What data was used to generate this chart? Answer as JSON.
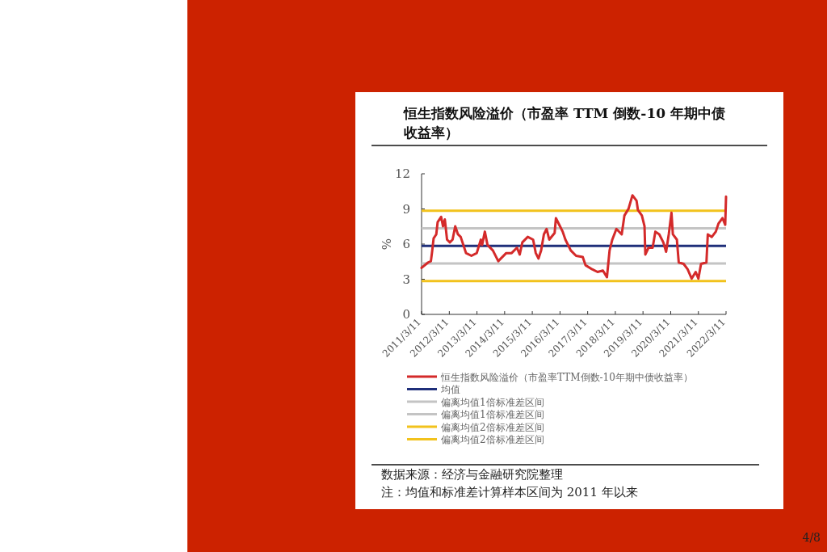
{
  "chart_data": {
    "type": "line",
    "title": "恒生指数风险溢价（市盈率 TTM 倒数-10 年期中债收益率）",
    "ylabel": "%",
    "xlim": [
      "2011-03-11",
      "2022-03-11"
    ],
    "xticks": [
      {
        "value": "2011-03-11",
        "label": "2011/3/11"
      },
      {
        "value": "2012-03-11",
        "label": "2012/3/11"
      },
      {
        "value": "2013-03-11",
        "label": "2013/3/11"
      },
      {
        "value": "2014-03-11",
        "label": "2014/3/11"
      },
      {
        "value": "2015-03-11",
        "label": "2015/3/11"
      },
      {
        "value": "2016-03-11",
        "label": "2016/3/11"
      },
      {
        "value": "2017-03-11",
        "label": "2017/3/11"
      },
      {
        "value": "2018-03-11",
        "label": "2018/3/11"
      },
      {
        "value": "2019-03-11",
        "label": "2019/3/11"
      },
      {
        "value": "2020-03-11",
        "label": "2020/3/11"
      },
      {
        "value": "2021-03-11",
        "label": "2021/3/11"
      },
      {
        "value": "2022-03-11",
        "label": "2022/3/11"
      }
    ],
    "ylim": [
      0,
      12
    ],
    "yticks": [
      0,
      3,
      6,
      9,
      12
    ],
    "grid": false,
    "legend": "bottom",
    "marker": "none",
    "line_style": "solid",
    "series": [
      {
        "name": "恒生指数风险溢价（市盈率TTM倒数-10年期中债收益率）",
        "color": "#d42a2a",
        "x": [
          "2011-03-11",
          "2011-06-05",
          "2011-07-12",
          "2011-07-30",
          "2011-08-17",
          "2011-09-21",
          "2011-10-09",
          "2011-11-24",
          "2011-12-19",
          "2012-01-12",
          "2012-02-10",
          "2012-03-18",
          "2012-04-23",
          "2012-05-28",
          "2012-07-03",
          "2012-08-08",
          "2012-10-18",
          "2012-12-28",
          "2013-03-08",
          "2013-05-01",
          "2013-05-18",
          "2013-06-23",
          "2013-07-28",
          "2013-10-07",
          "2013-12-17",
          "2014-04-01",
          "2014-06-11",
          "2014-08-21",
          "2014-09-26",
          "2014-10-31",
          "2015-01-10",
          "2015-03-22",
          "2015-04-26",
          "2015-06-01",
          "2015-07-06",
          "2015-08-11",
          "2015-09-16",
          "2015-10-21",
          "2015-12-31",
          "2016-01-17",
          "2016-03-11",
          "2016-04-15",
          "2016-05-21",
          "2016-07-31",
          "2016-10-09",
          "2017-01-05",
          "2017-02-10",
          "2017-05-09",
          "2017-07-19",
          "2017-09-28",
          "2017-11-20",
          "2017-12-25",
          "2018-01-30",
          "2018-03-25",
          "2018-06-03",
          "2018-07-09",
          "2018-09-01",
          "2018-10-23",
          "2018-12-16",
          "2019-01-03",
          "2019-02-24",
          "2019-03-31",
          "2019-04-11",
          "2019-05-23",
          "2019-07-16",
          "2019-08-21",
          "2019-10-12",
          "2019-12-04",
          "2020-01-10",
          "2020-02-14",
          "2020-03-21",
          "2020-04-08",
          "2020-05-31",
          "2020-06-25",
          "2020-08-28",
          "2020-10-20",
          "2020-12-12",
          "2021-02-03",
          "2021-03-11",
          "2021-04-15",
          "2021-06-25",
          "2021-07-13",
          "2021-09-04",
          "2021-10-27",
          "2021-12-01",
          "2022-01-23",
          "2022-02-28",
          "2022-03-11"
        ],
        "values": [
          3.97,
          4.43,
          4.54,
          5.46,
          6.49,
          6.83,
          7.87,
          8.33,
          7.52,
          8.1,
          6.38,
          6.15,
          6.38,
          7.52,
          6.83,
          6.61,
          5.23,
          5.0,
          5.23,
          6.38,
          5.92,
          7.06,
          5.92,
          5.46,
          4.54,
          5.23,
          5.23,
          5.69,
          5.11,
          6.15,
          6.61,
          6.38,
          5.23,
          4.77,
          5.46,
          6.83,
          7.29,
          6.38,
          6.95,
          8.21,
          7.52,
          7.06,
          6.38,
          5.46,
          5.0,
          4.89,
          4.2,
          3.85,
          3.62,
          3.74,
          3.17,
          5.46,
          6.38,
          7.29,
          6.83,
          8.44,
          9.01,
          10.16,
          9.7,
          8.9,
          8.44,
          7.52,
          5.11,
          5.69,
          5.69,
          7.06,
          6.83,
          6.15,
          5.34,
          6.83,
          8.67,
          6.83,
          6.38,
          4.43,
          4.31,
          3.85,
          3.05,
          3.62,
          3.05,
          4.31,
          4.43,
          6.83,
          6.61,
          7.06,
          7.75,
          8.21,
          7.64,
          10.05
        ]
      }
    ],
    "ref_lines": [
      {
        "axis": "y",
        "value": 5.85,
        "label": "均值",
        "color": "#1f2f7a"
      },
      {
        "axis": "y",
        "value": 7.35,
        "label": "偏离均值1倍标准差区间",
        "color": "#c4c4c4"
      },
      {
        "axis": "y",
        "value": 4.35,
        "label": "偏离均值1倍标准差区间",
        "color": "#c4c4c4"
      },
      {
        "axis": "y",
        "value": 8.85,
        "label": "偏离均值2倍标准差区间",
        "color": "#f2c21c"
      },
      {
        "axis": "y",
        "value": 2.85,
        "label": "偏离均值2倍标准差区间",
        "color": "#f2c21c"
      }
    ],
    "annotations": [
      "数据来源：经济与金融研究院整理",
      "注：均值和标准差计算样本区间为 2011 年以来",
      "4/8"
    ]
  }
}
